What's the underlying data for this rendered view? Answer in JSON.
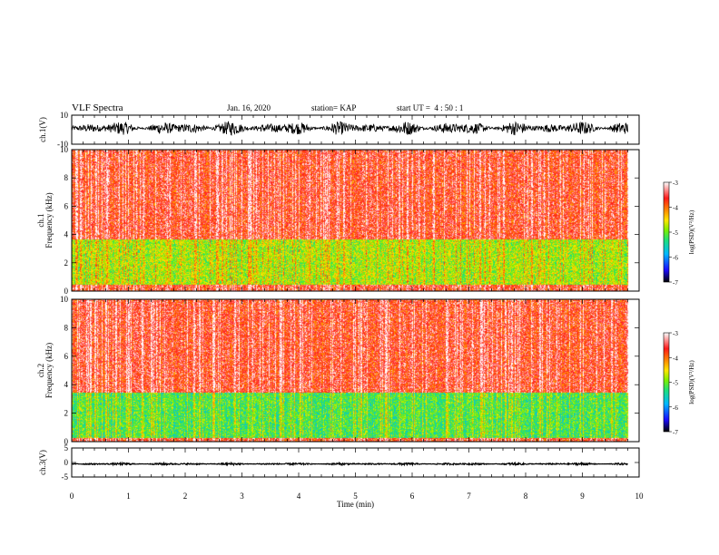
{
  "header": {
    "title": "VLF Spectra",
    "date": "Jan. 16, 2020",
    "station": "station= KAP",
    "start": "start UT =  4 : 50 : 1"
  },
  "chart_data": [
    {
      "type": "line",
      "panel": "ch1-waveform",
      "ylabel": "ch.1(V)",
      "y_ticks": [
        "10",
        "-10"
      ],
      "ylim": [
        -10,
        10
      ],
      "xlim": [
        0,
        10
      ],
      "approx_signal_range": [
        -4,
        6
      ],
      "signal_end_min": 9.8
    },
    {
      "type": "heatmap",
      "panel": "ch1-spectrogram",
      "ylabel": "ch.1\nFrequency (kHz)",
      "y_ticks": [
        "0",
        "2",
        "4",
        "6",
        "8",
        "10"
      ],
      "ylim": [
        0,
        10
      ],
      "xlim": [
        0,
        10
      ],
      "bands_khz": [
        {
          "range": [
            0,
            0.5
          ],
          "level": "high"
        },
        {
          "range": [
            0.5,
            3.7
          ],
          "level": "mixed-low"
        },
        {
          "range": [
            3.7,
            10
          ],
          "level": "high"
        }
      ],
      "colorbar": {
        "label": "log(PSD)(V²/Hz)",
        "ticks": [
          "-3",
          "-4",
          "-5",
          "-6",
          "-7"
        ],
        "range": [
          -7,
          -3
        ]
      }
    },
    {
      "type": "heatmap",
      "panel": "ch2-spectrogram",
      "ylabel": "ch.2\nFrequency (kHz)",
      "y_ticks": [
        "0",
        "2",
        "4",
        "6",
        "8",
        "10"
      ],
      "ylim": [
        0,
        10
      ],
      "xlim": [
        0,
        10
      ],
      "bands_khz": [
        {
          "range": [
            0,
            0.3
          ],
          "level": "high"
        },
        {
          "range": [
            0.3,
            3.5
          ],
          "level": "low"
        },
        {
          "range": [
            3.5,
            10
          ],
          "level": "high"
        }
      ],
      "colorbar": {
        "label": "log(PSD)(V²/Hz)",
        "ticks": [
          "-3",
          "-4",
          "-5",
          "-6",
          "-7"
        ],
        "range": [
          -7,
          -3
        ]
      }
    },
    {
      "type": "line",
      "panel": "ch3-waveform",
      "ylabel": "ch.3(V)",
      "y_ticks": [
        "5",
        "0",
        "-5"
      ],
      "ylim": [
        -5,
        5
      ],
      "xlim": [
        0,
        10
      ],
      "approx_signal_range": [
        -0.9,
        -0.1
      ],
      "signal_end_min": 9.8,
      "xlabel": "Time (min)",
      "x_ticks": [
        "0",
        "1",
        "2",
        "3",
        "4",
        "5",
        "6",
        "7",
        "8",
        "9",
        "10"
      ]
    }
  ],
  "colors": {
    "scale": [
      "#000000",
      "#1a0aff",
      "#00b8ff",
      "#1de07a",
      "#7cf000",
      "#ffe600",
      "#ff8a00",
      "#ff1a1a",
      "#ffffff"
    ]
  }
}
